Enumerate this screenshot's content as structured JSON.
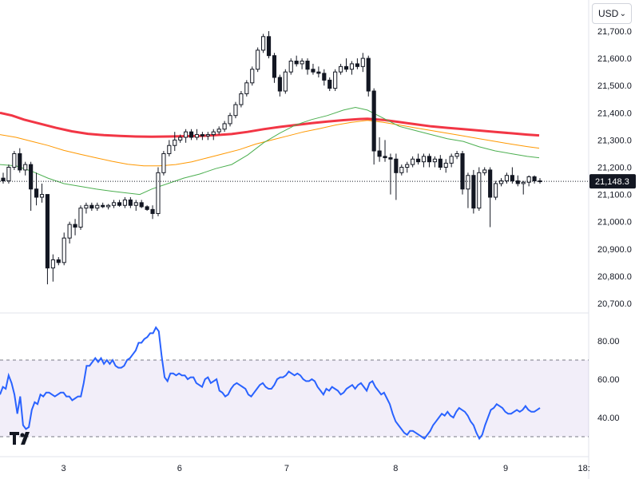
{
  "toolbar": {
    "currency": "USD"
  },
  "logo": {
    "name": "tradingview-logo",
    "text": "TV"
  },
  "chart_data": [
    {
      "type": "candlestick",
      "y_ticks": [
        "21,700.0",
        "21,600.0",
        "21,500.0",
        "21,400.0",
        "21,300.0",
        "21,200.0",
        "21,100.0",
        "21,000.0",
        "20,900.0",
        "20,800.0",
        "20,700.0"
      ],
      "ylim": [
        20680,
        21720
      ],
      "last_price": 21148.3,
      "last_price_label": "21,148.3",
      "candles": [
        [
          21160,
          21180,
          21140,
          21150
        ],
        [
          21150,
          21210,
          21140,
          21200
        ],
        [
          21200,
          21260,
          21190,
          21250
        ],
        [
          21250,
          21270,
          21180,
          21190
        ],
        [
          21190,
          21220,
          21170,
          21210
        ],
        [
          21210,
          21220,
          21040,
          21120
        ],
        [
          21120,
          21180,
          21060,
          21090
        ],
        [
          21090,
          21140,
          21070,
          21100
        ],
        [
          21100,
          21100,
          20770,
          20830
        ],
        [
          20830,
          20880,
          20780,
          20860
        ],
        [
          20860,
          20870,
          20840,
          20850
        ],
        [
          20850,
          20960,
          20840,
          20940
        ],
        [
          20940,
          21000,
          20920,
          20990
        ],
        [
          20990,
          21010,
          20950,
          20980
        ],
        [
          20980,
          21060,
          20970,
          21050
        ],
        [
          21050,
          21070,
          21030,
          21060
        ],
        [
          21060,
          21070,
          21040,
          21050
        ],
        [
          21050,
          21070,
          21040,
          21060
        ],
        [
          21060,
          21070,
          21050,
          21055
        ],
        [
          21055,
          21065,
          21045,
          21060
        ],
        [
          21060,
          21080,
          21050,
          21070
        ],
        [
          21070,
          21080,
          21055,
          21060
        ],
        [
          21060,
          21090,
          21050,
          21080
        ],
        [
          21080,
          21090,
          21050,
          21060
        ],
        [
          21060,
          21080,
          21040,
          21070
        ],
        [
          21070,
          21080,
          21050,
          21055
        ],
        [
          21055,
          21060,
          21040,
          21045
        ],
        [
          21045,
          21060,
          21010,
          21030
        ],
        [
          21030,
          21200,
          21020,
          21180
        ],
        [
          21180,
          21260,
          21170,
          21250
        ],
        [
          21250,
          21300,
          21240,
          21280
        ],
        [
          21280,
          21330,
          21260,
          21300
        ],
        [
          21300,
          21320,
          21290,
          21310
        ],
        [
          21310,
          21340,
          21290,
          21330
        ],
        [
          21330,
          21340,
          21300,
          21310
        ],
        [
          21310,
          21340,
          21300,
          21320
        ],
        [
          21320,
          21330,
          21300,
          21315
        ],
        [
          21315,
          21330,
          21300,
          21320
        ],
        [
          21320,
          21340,
          21300,
          21330
        ],
        [
          21330,
          21350,
          21320,
          21340
        ],
        [
          21340,
          21370,
          21330,
          21360
        ],
        [
          21360,
          21400,
          21350,
          21390
        ],
        [
          21390,
          21440,
          21380,
          21430
        ],
        [
          21430,
          21480,
          21420,
          21470
        ],
        [
          21470,
          21520,
          21460,
          21510
        ],
        [
          21510,
          21570,
          21500,
          21560
        ],
        [
          21560,
          21640,
          21550,
          21630
        ],
        [
          21630,
          21690,
          21620,
          21680
        ],
        [
          21680,
          21700,
          21600,
          21610
        ],
        [
          21610,
          21620,
          21510,
          21530
        ],
        [
          21530,
          21540,
          21460,
          21480
        ],
        [
          21480,
          21560,
          21470,
          21550
        ],
        [
          21550,
          21600,
          21540,
          21590
        ],
        [
          21590,
          21610,
          21570,
          21580
        ],
        [
          21580,
          21600,
          21560,
          21590
        ],
        [
          21590,
          21600,
          21540,
          21560
        ],
        [
          21560,
          21580,
          21540,
          21550
        ],
        [
          21550,
          21570,
          21530,
          21545
        ],
        [
          21545,
          21560,
          21500,
          21520
        ],
        [
          21520,
          21530,
          21480,
          21490
        ],
        [
          21490,
          21560,
          21480,
          21550
        ],
        [
          21550,
          21580,
          21540,
          21570
        ],
        [
          21570,
          21600,
          21550,
          21560
        ],
        [
          21560,
          21590,
          21540,
          21580
        ],
        [
          21580,
          21600,
          21560,
          21570
        ],
        [
          21570,
          21620,
          21550,
          21600
        ],
        [
          21600,
          21610,
          21460,
          21480
        ],
        [
          21480,
          21490,
          21210,
          21260
        ],
        [
          21260,
          21310,
          21220,
          21240
        ],
        [
          21240,
          21300,
          21220,
          21235
        ],
        [
          21235,
          21250,
          21100,
          21230
        ],
        [
          21230,
          21250,
          21080,
          21180
        ],
        [
          21180,
          21210,
          21170,
          21200
        ],
        [
          21200,
          21220,
          21180,
          21210
        ],
        [
          21210,
          21240,
          21200,
          21230
        ],
        [
          21230,
          21250,
          21210,
          21220
        ],
        [
          21220,
          21250,
          21200,
          21240
        ],
        [
          21240,
          21250,
          21200,
          21220
        ],
        [
          21220,
          21240,
          21200,
          21230
        ],
        [
          21230,
          21245,
          21190,
          21200
        ],
        [
          21200,
          21230,
          21180,
          21215
        ],
        [
          21215,
          21250,
          21200,
          21240
        ],
        [
          21240,
          21260,
          21230,
          21250
        ],
        [
          21250,
          21260,
          21100,
          21120
        ],
        [
          21120,
          21180,
          21050,
          21170
        ],
        [
          21170,
          21190,
          21030,
          21050
        ],
        [
          21050,
          21200,
          21040,
          21180
        ],
        [
          21180,
          21200,
          21170,
          21190
        ],
        [
          21190,
          21200,
          20980,
          21090
        ],
        [
          21090,
          21150,
          21080,
          21140
        ],
        [
          21140,
          21160,
          21130,
          21150
        ],
        [
          21150,
          21180,
          21140,
          21170
        ],
        [
          21170,
          21200,
          21140,
          21150
        ],
        [
          21150,
          21170,
          21130,
          21140
        ],
        [
          21140,
          21150,
          21100,
          21145
        ],
        [
          21145,
          21170,
          21130,
          21165
        ],
        [
          21165,
          21170,
          21140,
          21150
        ],
        [
          21150,
          21160,
          21140,
          21148.3
        ]
      ],
      "ma_series": [
        {
          "color": "#f23645",
          "width": 3,
          "points": [
            [
              0,
              21400
            ],
            [
              15,
              21390
            ],
            [
              30,
              21375
            ],
            [
              50,
              21360
            ],
            [
              70,
              21345
            ],
            [
              90,
              21332
            ],
            [
              110,
              21323
            ],
            [
              130,
              21318
            ],
            [
              150,
              21315
            ],
            [
              170,
              21313
            ],
            [
              190,
              21312
            ],
            [
              210,
              21313
            ],
            [
              230,
              21314
            ],
            [
              250,
              21315
            ],
            [
              270,
              21318
            ],
            [
              290,
              21322
            ],
            [
              310,
              21330
            ],
            [
              330,
              21340
            ],
            [
              350,
              21348
            ],
            [
              370,
              21355
            ],
            [
              390,
              21362
            ],
            [
              410,
              21368
            ],
            [
              430,
              21373
            ],
            [
              450,
              21377
            ],
            [
              460,
              21378
            ],
            [
              480,
              21374
            ],
            [
              500,
              21366
            ],
            [
              520,
              21358
            ],
            [
              540,
              21350
            ],
            [
              560,
              21345
            ],
            [
              580,
              21340
            ],
            [
              600,
              21335
            ],
            [
              620,
              21330
            ],
            [
              640,
              21325
            ],
            [
              660,
              21320
            ],
            [
              675,
              21317
            ]
          ]
        },
        {
          "color": "#ff9800",
          "width": 1,
          "points": [
            [
              0,
              21320
            ],
            [
              20,
              21310
            ],
            [
              40,
              21295
            ],
            [
              60,
              21280
            ],
            [
              80,
              21262
            ],
            [
              100,
              21248
            ],
            [
              120,
              21235
            ],
            [
              140,
              21222
            ],
            [
              160,
              21211
            ],
            [
              180,
              21205
            ],
            [
              200,
              21205
            ],
            [
              220,
              21210
            ],
            [
              240,
              21220
            ],
            [
              260,
              21235
            ],
            [
              280,
              21250
            ],
            [
              300,
              21265
            ],
            [
              320,
              21285
            ],
            [
              340,
              21300
            ],
            [
              360,
              21315
            ],
            [
              380,
              21330
            ],
            [
              400,
              21342
            ],
            [
              420,
              21355
            ],
            [
              440,
              21365
            ],
            [
              460,
              21372
            ],
            [
              480,
              21365
            ],
            [
              500,
              21355
            ],
            [
              520,
              21345
            ],
            [
              540,
              21335
            ],
            [
              560,
              21325
            ],
            [
              580,
              21315
            ],
            [
              600,
              21305
            ],
            [
              620,
              21295
            ],
            [
              640,
              21285
            ],
            [
              660,
              21276
            ],
            [
              675,
              21270
            ]
          ]
        },
        {
          "color": "#4caf50",
          "width": 1,
          "points": [
            [
              0,
              21210
            ],
            [
              20,
              21205
            ],
            [
              40,
              21185
            ],
            [
              60,
              21160
            ],
            [
              80,
              21140
            ],
            [
              100,
              21130
            ],
            [
              120,
              21120
            ],
            [
              140,
              21112
            ],
            [
              160,
              21105
            ],
            [
              175,
              21100
            ],
            [
              190,
              21120
            ],
            [
              210,
              21140
            ],
            [
              230,
              21160
            ],
            [
              250,
              21175
            ],
            [
              270,
              21195
            ],
            [
              290,
              21210
            ],
            [
              310,
              21245
            ],
            [
              330,
              21290
            ],
            [
              350,
              21325
            ],
            [
              370,
              21355
            ],
            [
              390,
              21375
            ],
            [
              410,
              21390
            ],
            [
              430,
              21410
            ],
            [
              445,
              21420
            ],
            [
              460,
              21410
            ],
            [
              480,
              21380
            ],
            [
              500,
              21350
            ],
            [
              520,
              21335
            ],
            [
              540,
              21320
            ],
            [
              560,
              21305
            ],
            [
              580,
              21295
            ],
            [
              600,
              21275
            ],
            [
              620,
              21260
            ],
            [
              640,
              21250
            ],
            [
              660,
              21240
            ],
            [
              675,
              21235
            ]
          ]
        }
      ]
    },
    {
      "type": "line",
      "indicator": "rsi",
      "y_ticks": [
        "80.00",
        "60.00",
        "40.00"
      ],
      "ylim": [
        26,
        90
      ],
      "band": [
        30,
        70
      ],
      "color": "#2962ff",
      "values": [
        52,
        56,
        55,
        62,
        58,
        52,
        42,
        51,
        36,
        34,
        35,
        44,
        48,
        47,
        52,
        51,
        53,
        53,
        52,
        51,
        52,
        53,
        53,
        51,
        51,
        49,
        50,
        51,
        51,
        58,
        67,
        67,
        69,
        71,
        69,
        71,
        68,
        70,
        68,
        70,
        67,
        66,
        66,
        67,
        70,
        71,
        73,
        75,
        79,
        79,
        81,
        82,
        84,
        84,
        87,
        85,
        72,
        61,
        59,
        63,
        63,
        62,
        63,
        62,
        62,
        60,
        61,
        61,
        58,
        57,
        56,
        60,
        61,
        58,
        59,
        60,
        54,
        53,
        51,
        52,
        55,
        57,
        58,
        57,
        56,
        55,
        52,
        51,
        53,
        55,
        57,
        58,
        56,
        55,
        55,
        57,
        60,
        61,
        61,
        62,
        64,
        63,
        62,
        63,
        62,
        60,
        59,
        59,
        60,
        59,
        56,
        54,
        52,
        55,
        54,
        56,
        55,
        54,
        52,
        53,
        55,
        56,
        57,
        55,
        57,
        58,
        56,
        54,
        58,
        59,
        56,
        54,
        52,
        53,
        50,
        47,
        42,
        38,
        36,
        34,
        32,
        31,
        33,
        33,
        32,
        31,
        30,
        29,
        31,
        33,
        36,
        38,
        40,
        42,
        41,
        43,
        41,
        40,
        43,
        45,
        44,
        43,
        41,
        38,
        36,
        32,
        29,
        31,
        36,
        40,
        44,
        45,
        47,
        46,
        45,
        43,
        42,
        42,
        43,
        44,
        43,
        44,
        46,
        44,
        43,
        43,
        44,
        45
      ]
    }
  ],
  "x_labels": [
    {
      "text": "3",
      "pos": 0.108
    },
    {
      "text": "6",
      "pos": 0.305
    },
    {
      "text": "7",
      "pos": 0.487
    },
    {
      "text": "8",
      "pos": 0.672
    },
    {
      "text": "9",
      "pos": 0.859
    },
    {
      "text": "18:",
      "pos": 0.992
    }
  ]
}
